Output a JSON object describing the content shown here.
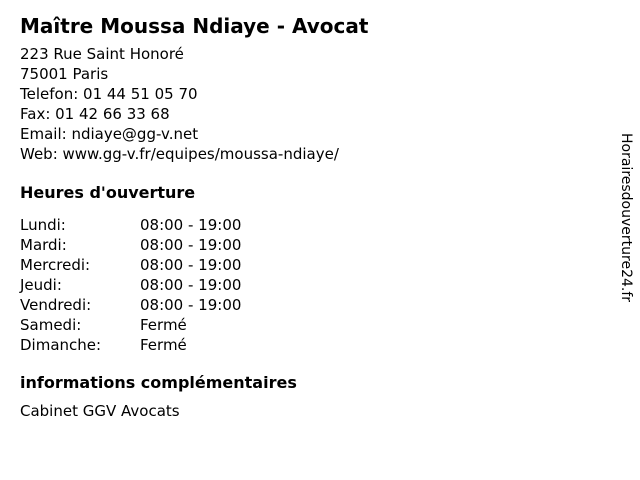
{
  "title": "Maître Moussa Ndiaye - Avocat",
  "contact": {
    "address_line1": "223 Rue Saint Honoré",
    "address_line2": "75001 Paris",
    "phone_line": "Telefon: 01 44 51 05 70",
    "fax_line": "Fax: 01 42 66 33 68",
    "email_line": "Email: ndiaye@gg-v.net",
    "web_line": "Web: www.gg-v.fr/equipes/moussa-ndiaye/"
  },
  "hours": {
    "heading": "Heures d'ouverture",
    "rows": [
      {
        "day": "Lundi:",
        "time": "08:00 - 19:00"
      },
      {
        "day": "Mardi:",
        "time": "08:00 - 19:00"
      },
      {
        "day": "Mercredi:",
        "time": "08:00 - 19:00"
      },
      {
        "day": "Jeudi:",
        "time": "08:00 - 19:00"
      },
      {
        "day": "Vendredi:",
        "time": "08:00 - 19:00"
      },
      {
        "day": "Samedi:",
        "time": "Fermé"
      },
      {
        "day": "Dimanche:",
        "time": "Fermé"
      }
    ]
  },
  "info": {
    "heading": "informations complémentaires",
    "text": "Cabinet GGV Avocats"
  },
  "watermark": {
    "text": "Horairesdouverture24.fr"
  },
  "colors": {
    "background": "#ffffff",
    "text": "#000000"
  }
}
